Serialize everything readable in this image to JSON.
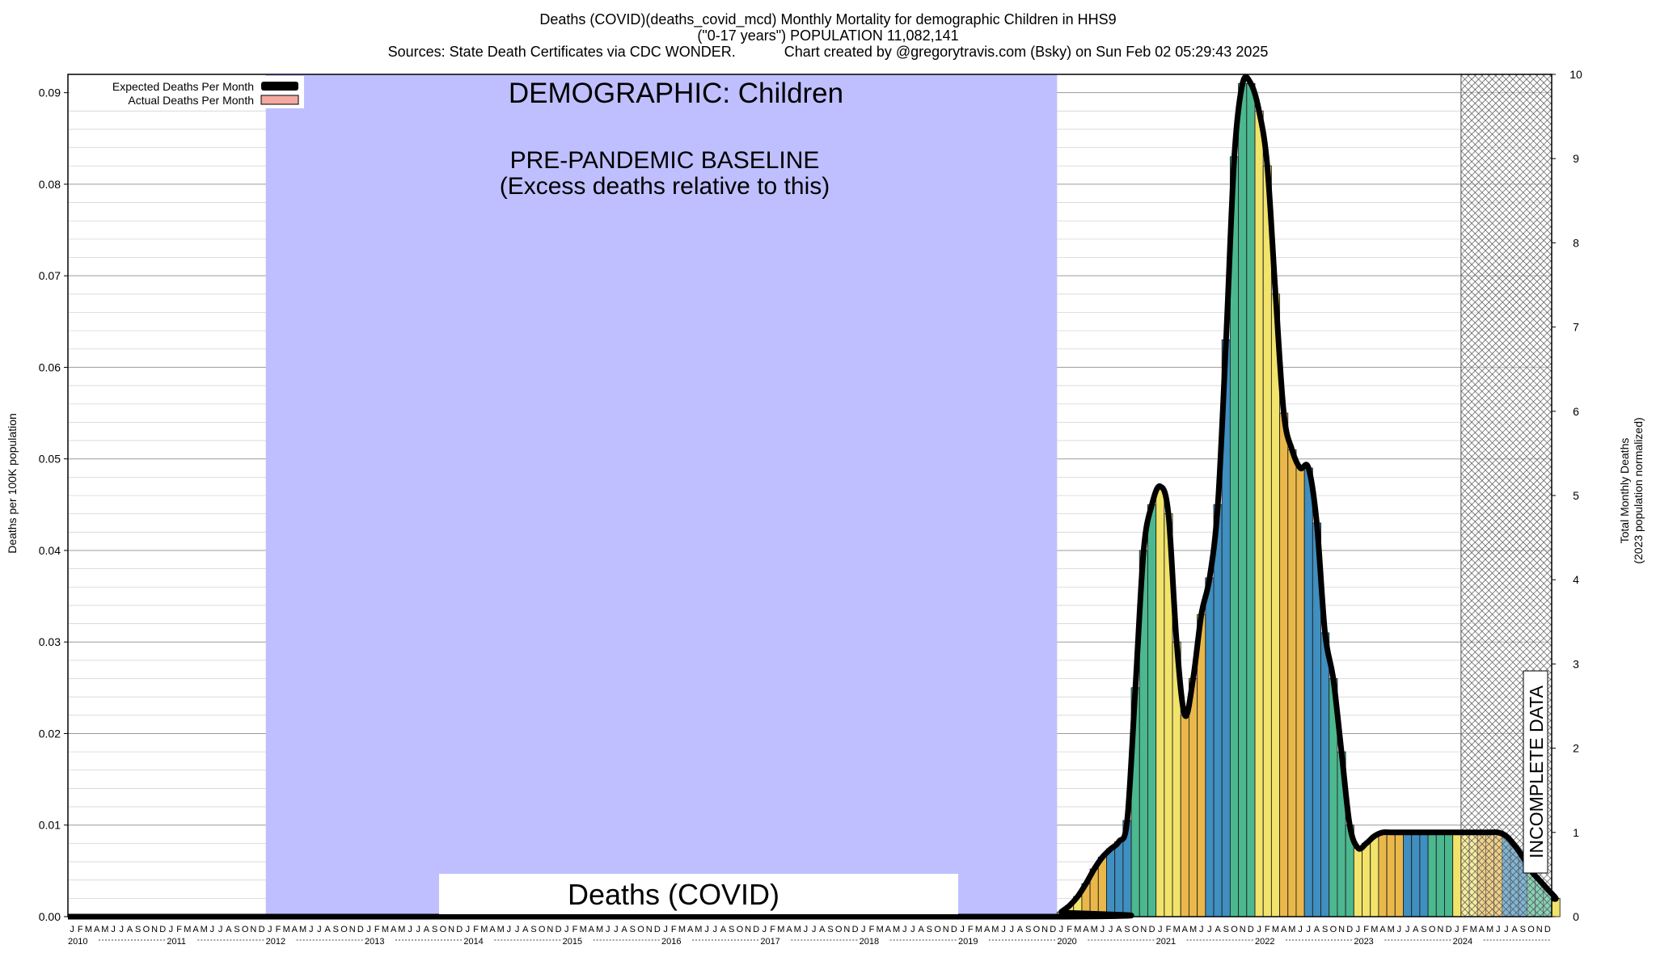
{
  "header": {
    "line1": "Deaths (COVID)(deaths_covid_mcd) Monthly Mortality for demographic Children in HHS9",
    "line2": "(\"0-17 years\") POPULATION 11,082,141",
    "line3": "Sources: State Death Certificates via CDC WONDER.            Chart created by @gregorytravis.com (Bsky) on Sun Feb 02 05:29:43 2025"
  },
  "chart_data": {
    "type": "bar",
    "title": "Deaths (COVID)",
    "ylabel_left": "Deaths per 100K population",
    "ylabel_right_line1": "Total Monthly Deaths",
    "ylabel_right_line2": "(2023 population normalized)",
    "ylim_left": [
      0,
      0.092
    ],
    "ylim_right": [
      0,
      10
    ],
    "yticks_left": [
      "0.00",
      "0.01",
      "0.02",
      "0.03",
      "0.04",
      "0.05",
      "0.06",
      "0.07",
      "0.08",
      "0.09"
    ],
    "yticks_right": [
      "0",
      "1",
      "2",
      "3",
      "4",
      "5",
      "6",
      "7",
      "8",
      "9",
      "10"
    ],
    "years": [
      "2010",
      "2011",
      "2012",
      "2013",
      "2014",
      "2015",
      "2016",
      "2017",
      "2018",
      "2019",
      "2020",
      "2021",
      "2022",
      "2023",
      "2024"
    ],
    "month_letters": [
      "J",
      "F",
      "M",
      "A",
      "M",
      "J",
      "J",
      "A",
      "S",
      "O",
      "N",
      "D"
    ],
    "legend": [
      {
        "label": "Expected Deaths Per Month",
        "color": "#000000"
      },
      {
        "label": "Actual Deaths Per Month",
        "color": "#f4a9a0"
      }
    ],
    "annotations": {
      "demographic": "DEMOGRAPHIC: Children",
      "baseline_line1": "PRE-PANDEMIC BASELINE",
      "baseline_line2": "(Excess deaths relative to this)",
      "incomplete": "INCOMPLETE DATA"
    },
    "baseline_period": {
      "start": "2012-01",
      "end": "2019-12",
      "color": "#bfbfff"
    },
    "incomplete_period": {
      "start": "2024-02",
      "end": "2024-12"
    },
    "bar_colors": [
      "#f2e36b",
      "#eab84a",
      "#3f8fc0",
      "#4cb890"
    ],
    "series": [
      {
        "name": "Deaths (COVID)",
        "start": "2020-01",
        "values": [
          0.0005,
          0.0012,
          0.0022,
          0.0036,
          0.0052,
          0.0065,
          0.0074,
          0.0082,
          0.0105,
          0.025,
          0.04,
          0.045,
          0.047,
          0.044,
          0.03,
          0.022,
          0.026,
          0.033,
          0.037,
          0.045,
          0.063,
          0.083,
          0.091,
          0.091,
          0.088,
          0.082,
          0.068,
          0.055,
          0.051,
          0.049,
          0.049,
          0.043,
          0.031,
          0.026,
          0.018,
          0.01,
          0.0075,
          0.008,
          0.0088,
          0.0092,
          0.0092,
          0.0092,
          0.0092,
          0.0092,
          0.0092,
          0.0092,
          0.0092,
          0.0092,
          0.0092,
          0.0092,
          0.0092,
          0.0092,
          0.0092,
          0.0092,
          0.0088,
          0.0078,
          0.0065,
          0.005,
          0.004,
          0.003,
          0.002
        ]
      }
    ]
  }
}
